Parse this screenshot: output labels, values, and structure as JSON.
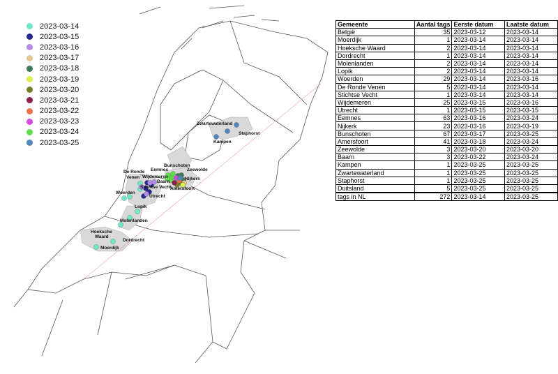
{
  "legend": {
    "items": [
      {
        "label": "2023-03-14",
        "color": "#6fe7c8"
      },
      {
        "label": "2023-03-15",
        "color": "#26288f"
      },
      {
        "label": "2023-03-16",
        "color": "#b38be8"
      },
      {
        "label": "2023-03-17",
        "color": "#e5c590"
      },
      {
        "label": "2023-03-18",
        "color": "#3e7a55"
      },
      {
        "label": "2023-03-19",
        "color": "#e2ee4c"
      },
      {
        "label": "2023-03-20",
        "color": "#7b7d2a"
      },
      {
        "label": "2023-03-21",
        "color": "#8a1f52"
      },
      {
        "label": "2023-03-22",
        "color": "#f0714c"
      },
      {
        "label": "2023-03-23",
        "color": "#d94be0"
      },
      {
        "label": "2023-03-24",
        "color": "#5fe04c"
      },
      {
        "label": "2023-03-25",
        "color": "#5288bd"
      }
    ]
  },
  "map_labels": {
    "zwartewaterland": "Zwartewaterland",
    "staphorst": "Staphorst",
    "kampen": "Kampen",
    "bunschoten": "Bunschoten",
    "zeewolde": "Zeewolde",
    "eemnes": "Eemnes",
    "nijkerk": "Nijkerk",
    "de_ronde_venen_1": "De Ronde",
    "de_ronde_venen_2": "Venen",
    "wijdemeren": "Wijdemeren",
    "baarn": "Baarn",
    "stichtse_vecht": "Stichtse Vecht",
    "amersfoort": "Amersfoort",
    "woerden": "Woerden",
    "utrecht": "Utrecht",
    "lopik": "Lopik",
    "molenlanden": "Molenlanden",
    "hoeksche_1": "Hoeksche",
    "hoeksche_2": "Waard",
    "dordrecht": "Dordrecht",
    "moerdijk": "Moerdijk"
  },
  "table": {
    "headers": [
      "Gemeente",
      "Aantal tags",
      "Eerste datum",
      "Laatste datum"
    ],
    "rows": [
      [
        "België",
        "35",
        "2023-03-12",
        "2023-03-14"
      ],
      [
        "Moerdijk",
        "1",
        "2023-03-14",
        "2023-03-14"
      ],
      [
        "Hoeksche Waard",
        "2",
        "2023-03-14",
        "2023-03-14"
      ],
      [
        "Dordrecht",
        "1",
        "2023-03-14",
        "2023-03-14"
      ],
      [
        "Molenlanden",
        "2",
        "2023-03-14",
        "2023-03-14"
      ],
      [
        "Lopik",
        "2",
        "2023-03-14",
        "2023-03-14"
      ],
      [
        "Woerden",
        "29",
        "2023-03-14",
        "2023-03-16"
      ],
      [
        "De Ronde Venen",
        "5",
        "2023-03-14",
        "2023-03-14"
      ],
      [
        "Stichtse Vecht",
        "1",
        "2023-03-14",
        "2023-03-14"
      ],
      [
        "Wijdemeren",
        "25",
        "2023-03-15",
        "2023-03-16"
      ],
      [
        "Utrecht",
        "1",
        "2023-03-15",
        "2023-03-15"
      ],
      [
        "Eemnes",
        "63",
        "2023-03-16",
        "2023-03-24"
      ],
      [
        "Nijkerk",
        "23",
        "2023-03-16",
        "2023-03-19"
      ],
      [
        "Bunschoten",
        "67",
        "2023-03-17",
        "2023-03-25"
      ],
      [
        "Amersfoort",
        "41",
        "2023-03-18",
        "2023-03-24"
      ],
      [
        "Zeewolde",
        "3",
        "2023-03-20",
        "2023-03-20"
      ],
      [
        "Baarn",
        "3",
        "2023-03-22",
        "2023-03-24"
      ],
      [
        "Kampen",
        "1",
        "2023-03-25",
        "2023-03-25"
      ],
      [
        "Zwartewaterland",
        "1",
        "2023-03-25",
        "2023-03-25"
      ],
      [
        "Staphorst",
        "1",
        "2023-03-25",
        "2023-03-25"
      ],
      [
        "Duitsland",
        "5",
        "2023-03-25",
        "2023-03-25"
      ]
    ],
    "total": [
      "tags in NL",
      "272",
      "2023-03-14",
      "2023-03-25"
    ]
  }
}
